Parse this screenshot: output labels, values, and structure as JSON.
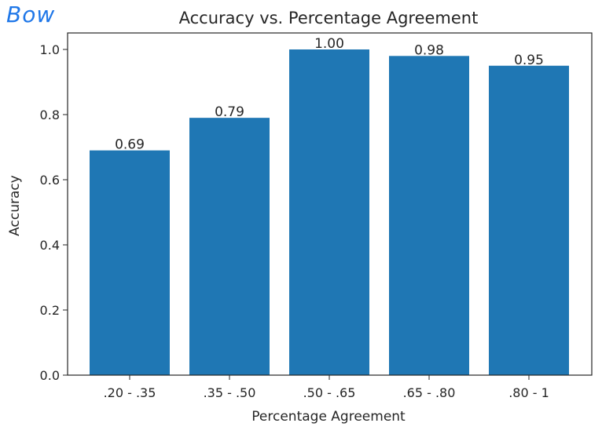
{
  "annotation": "Bow",
  "chart_data": {
    "type": "bar",
    "title": "Accuracy vs. Percentage Agreement",
    "xlabel": "Percentage Agreement",
    "ylabel": "Accuracy",
    "categories": [
      ".20 - .35",
      ".35 - .50",
      ".50 - .65",
      ".65 - .80",
      ".80 - 1"
    ],
    "values": [
      0.69,
      0.79,
      1.0,
      0.98,
      0.95
    ],
    "data_labels": [
      "0.69",
      "0.79",
      "1.00",
      "0.98",
      "0.95"
    ],
    "ylim": [
      0,
      1.0
    ],
    "yticks": [
      0.0,
      0.2,
      0.4,
      0.6,
      0.8,
      1.0
    ],
    "ytick_labels": [
      "0.0",
      "0.2",
      "0.4",
      "0.6",
      "0.8",
      "1.0"
    ],
    "grid": false,
    "colors": {
      "bar": "#1f77b4",
      "axes": "#262626"
    }
  }
}
